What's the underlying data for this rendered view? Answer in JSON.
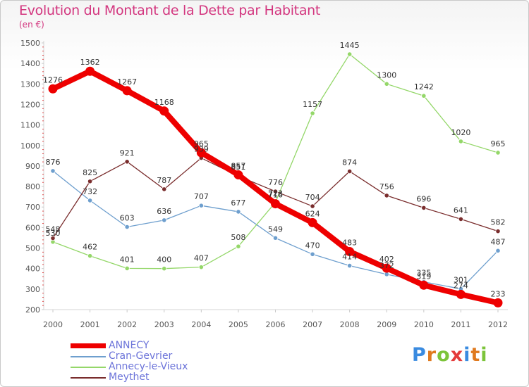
{
  "title": "Evolution du Montant de la Dette par Habitant",
  "subtitle": "(en €)",
  "brand": {
    "text": "Proxiti",
    "colors": [
      "#3a8be0",
      "#e07a1f",
      "#7cc43a",
      "#e43b3b",
      "#3a8be0",
      "#e07a1f",
      "#7cc43a"
    ]
  },
  "chart_data": {
    "type": "line",
    "x": [
      2000,
      2001,
      2002,
      2003,
      2004,
      2005,
      2006,
      2007,
      2008,
      2009,
      2010,
      2011,
      2012
    ],
    "ylim": [
      200,
      1500
    ],
    "yticks": [
      200,
      300,
      400,
      500,
      600,
      700,
      800,
      900,
      1000,
      1100,
      1200,
      1300,
      1400,
      1500
    ],
    "grid": false,
    "legend_position": "bottom-left",
    "series": [
      {
        "name": "ANNECY",
        "color": "#ee0000",
        "values": [
          1276,
          1362,
          1267,
          1168,
          965,
          857,
          716,
          624,
          483,
          402,
          319,
          274,
          233
        ]
      },
      {
        "name": "Cran-Gevrier",
        "color": "#6e9fce",
        "values": [
          876,
          732,
          603,
          636,
          707,
          677,
          549,
          470,
          414,
          372,
          335,
          301,
          487
        ]
      },
      {
        "name": "Annecy-le-Vieux",
        "color": "#94d769",
        "values": [
          530,
          462,
          401,
          400,
          407,
          508,
          723,
          1157,
          1445,
          1300,
          1242,
          1020,
          965
        ]
      },
      {
        "name": "Meythet",
        "color": "#7a2d2d",
        "values": [
          548,
          825,
          921,
          787,
          939,
          851,
          776,
          704,
          874,
          756,
          696,
          641,
          582
        ]
      }
    ]
  }
}
